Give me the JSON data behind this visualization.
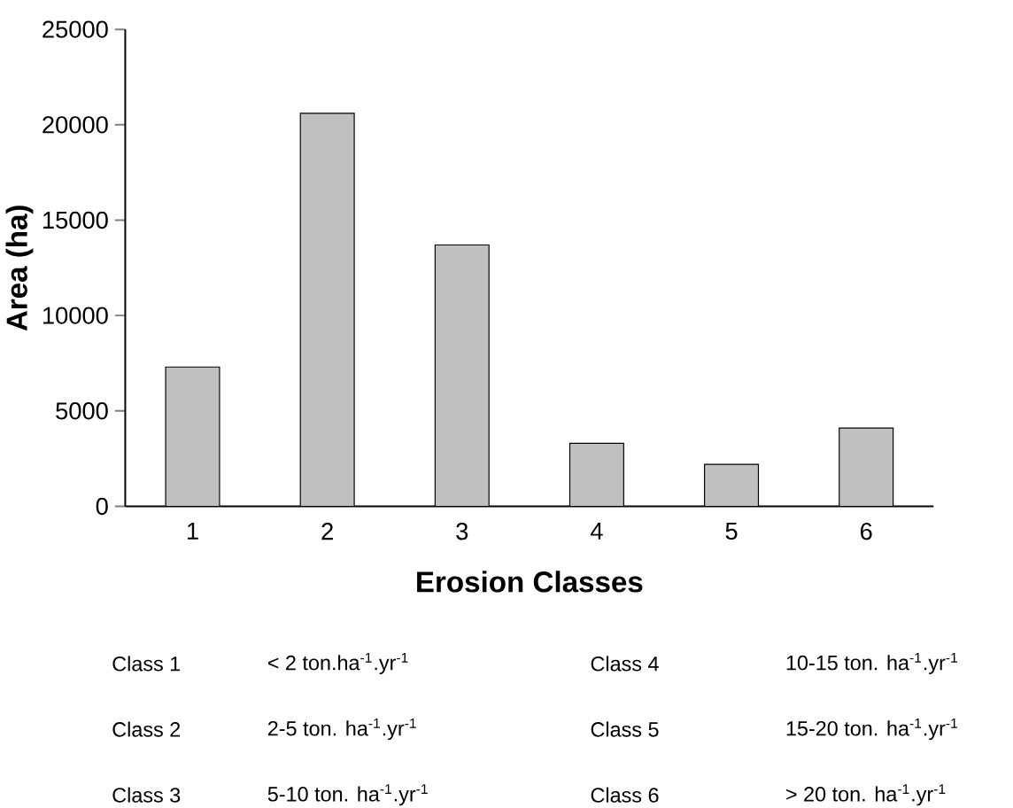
{
  "chart_data": {
    "type": "bar",
    "xlabel": "Erosion Classes",
    "ylabel": "Area (ha)",
    "categories": [
      "1",
      "2",
      "3",
      "4",
      "5",
      "6"
    ],
    "values": [
      7300,
      20600,
      13700,
      3300,
      2200,
      4100
    ],
    "color": "#c0c0c0",
    "ylim": [
      0,
      25000
    ],
    "yticks": [
      0,
      5000,
      10000,
      15000,
      20000,
      25000
    ],
    "annotations": [
      "Class 1",
      "< 2 ton.ha$^{-1}$.yr$^{-1}$",
      "Class 4",
      "10-15 ton. ha$^{-1}$.yr$^{-1}$",
      "Class 2",
      "2-5 ton. ha$^{-1}$.yr$^{-1}$",
      "Class 5",
      "15-20 ton. ha$^{-1}$.yr$^{-1}$",
      "Class 3",
      "5-10 ton. ha$^{-1}$.yr$^{-1}$",
      "Class 6",
      "> 20 ton. ha$^{-1}$.yr$^{-1}$"
    ]
  }
}
